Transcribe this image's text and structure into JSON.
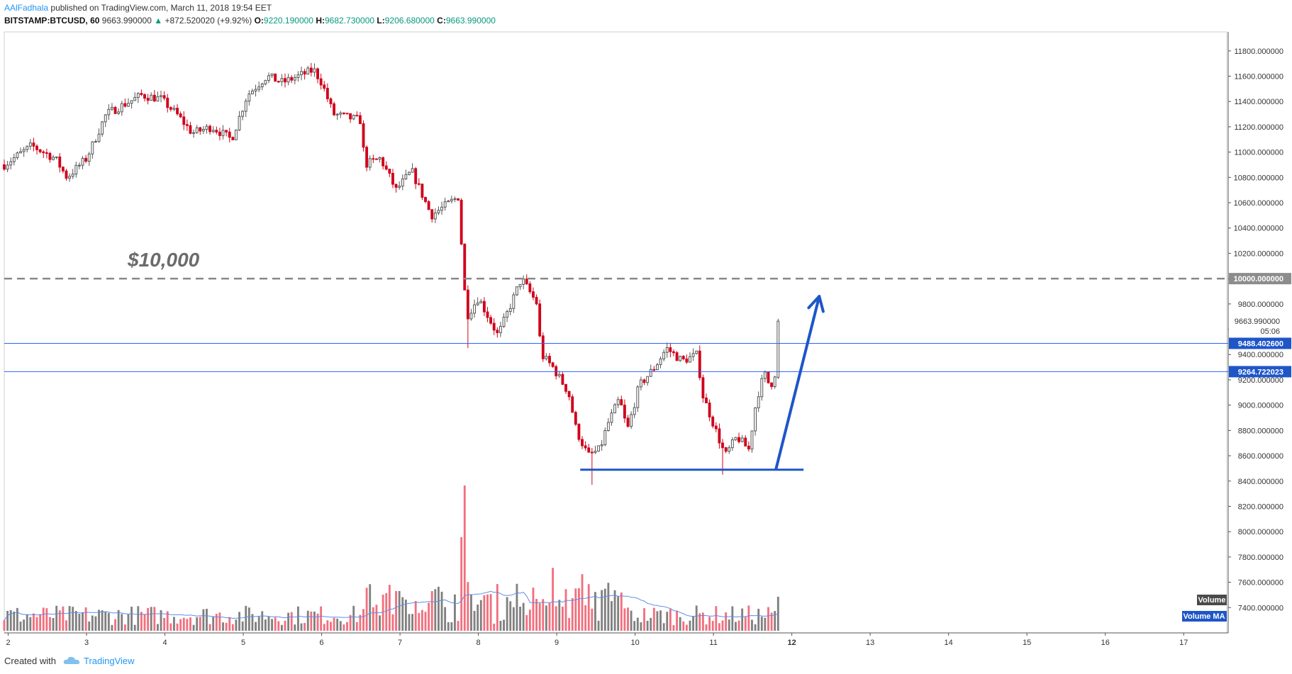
{
  "header": {
    "author": "AAlFadhala",
    "published_text": "published on TradingView.com, March 11, 2018 19:54 EET"
  },
  "info": {
    "symbol": "BITSTAMP:BTCUSD, 60",
    "last": "9663.990000",
    "change_arrow": "▲",
    "change": "+872.520020 (+9.92%)",
    "o_label": "O:",
    "o_value": "9220.190000",
    "h_label": "H:",
    "h_value": "9682.730000",
    "l_label": "L:",
    "l_value": "9206.680000",
    "c_label": "C:",
    "c_value": "9663.990000"
  },
  "footer": {
    "created_with": "Created with",
    "brand": "TradingView",
    "logo_icon": "tradingview-cloud-icon"
  },
  "colors": {
    "up": "#555555",
    "down": "#d0021b",
    "vol_up": "#808080",
    "vol_down": "#f1707e",
    "hline": "#2962ff",
    "arrow": "#1e56c8",
    "dash": "#888888",
    "axis_bg": "#ffffff"
  },
  "chart_data": {
    "type": "candlestick",
    "title": "BITSTAMP:BTCUSD, 60",
    "y_axis": {
      "side": "right",
      "range": [
        7200,
        11950
      ],
      "ticks": [
        7400,
        7600,
        7800,
        8000,
        8200,
        8400,
        8600,
        8800,
        9000,
        9200,
        9400,
        9600,
        9800,
        10000,
        10200,
        10400,
        10600,
        10800,
        11000,
        11200,
        11400,
        11600,
        11800
      ],
      "tick_labels": [
        "7400.000000",
        "7600.000000",
        "7800.000000",
        "8000.000000",
        "8200.000000",
        "8400.000000",
        "8600.000000",
        "8800.000000",
        "9000.000000",
        "9200.000000",
        "9400.000000",
        "9600.000000",
        "9800.000000",
        "10000.000000",
        "10200.000000",
        "10400.000000",
        "10600.000000",
        "10800.000000",
        "11000.000000",
        "11200.000000",
        "11400.000000",
        "11600.000000",
        "11800.000000"
      ]
    },
    "x_axis": {
      "unit": "day (March 2018)",
      "range": [
        1.95,
        17.55
      ],
      "ticks": [
        2,
        3,
        4,
        5,
        6,
        7,
        8,
        9,
        10,
        11,
        12,
        13,
        14,
        15,
        16,
        17
      ],
      "tick_labels": [
        "2",
        "3",
        "4",
        "5",
        "6",
        "7",
        "8",
        "9",
        "10",
        "11",
        "12",
        "13",
        "14",
        "15",
        "16",
        "17"
      ],
      "bold_tick": "12"
    },
    "price_path": [
      [
        1.95,
        10900
      ],
      [
        2.3,
        11050
      ],
      [
        2.6,
        10950
      ],
      [
        2.75,
        10800
      ],
      [
        3.0,
        10950
      ],
      [
        3.25,
        11300
      ],
      [
        3.7,
        11450
      ],
      [
        3.95,
        11420
      ],
      [
        4.15,
        11300
      ],
      [
        4.35,
        11150
      ],
      [
        4.6,
        11200
      ],
      [
        4.85,
        11100
      ],
      [
        5.05,
        11450
      ],
      [
        5.3,
        11600
      ],
      [
        5.5,
        11550
      ],
      [
        5.9,
        11650
      ],
      [
        6.0,
        11550
      ],
      [
        6.15,
        11300
      ],
      [
        6.5,
        11250
      ],
      [
        6.55,
        10900
      ],
      [
        6.75,
        10950
      ],
      [
        6.95,
        10700
      ],
      [
        7.15,
        10850
      ],
      [
        7.4,
        10500
      ],
      [
        7.75,
        10650
      ],
      [
        7.8,
        10100
      ],
      [
        7.85,
        9700
      ],
      [
        8.0,
        9850
      ],
      [
        8.25,
        9550
      ],
      [
        8.45,
        9850
      ],
      [
        8.55,
        10000
      ],
      [
        8.75,
        9800
      ],
      [
        8.8,
        9400
      ],
      [
        8.95,
        9300
      ],
      [
        9.15,
        9100
      ],
      [
        9.25,
        8800
      ],
      [
        9.4,
        8600
      ],
      [
        9.55,
        8650
      ],
      [
        9.65,
        8850
      ],
      [
        9.8,
        9050
      ],
      [
        9.9,
        8800
      ],
      [
        10.05,
        9150
      ],
      [
        10.25,
        9300
      ],
      [
        10.4,
        9450
      ],
      [
        10.6,
        9350
      ],
      [
        10.8,
        9400
      ],
      [
        10.85,
        9100
      ],
      [
        11.0,
        8850
      ],
      [
        11.15,
        8600
      ],
      [
        11.3,
        8750
      ],
      [
        11.45,
        8650
      ],
      [
        11.55,
        9050
      ],
      [
        11.65,
        9250
      ],
      [
        11.72,
        9150
      ],
      [
        11.78,
        9220
      ],
      [
        11.83,
        9663.99
      ]
    ],
    "volume": {
      "label": "Volume",
      "ma_label": "Volume MA",
      "spike_day": 7.82,
      "spike_max_approx": 11500
    },
    "annotations": {
      "level_label": "$10,000",
      "dashed_level": 10000,
      "dashed_level_label": "10000.000000",
      "resistance_1": 9488.4026,
      "resistance_1_label": "9488.402600",
      "resistance_2": 9264.722023,
      "resistance_2_label": "9264.722023",
      "current_price": 9663.99,
      "current_price_label": "9663.990000",
      "countdown": "05:06",
      "support": {
        "price": 8490,
        "from_day": 9.3,
        "to_day": 12.15
      },
      "arrow": {
        "from": [
          11.8,
          8500
        ],
        "to": [
          12.35,
          9860
        ]
      }
    },
    "grid": false
  }
}
